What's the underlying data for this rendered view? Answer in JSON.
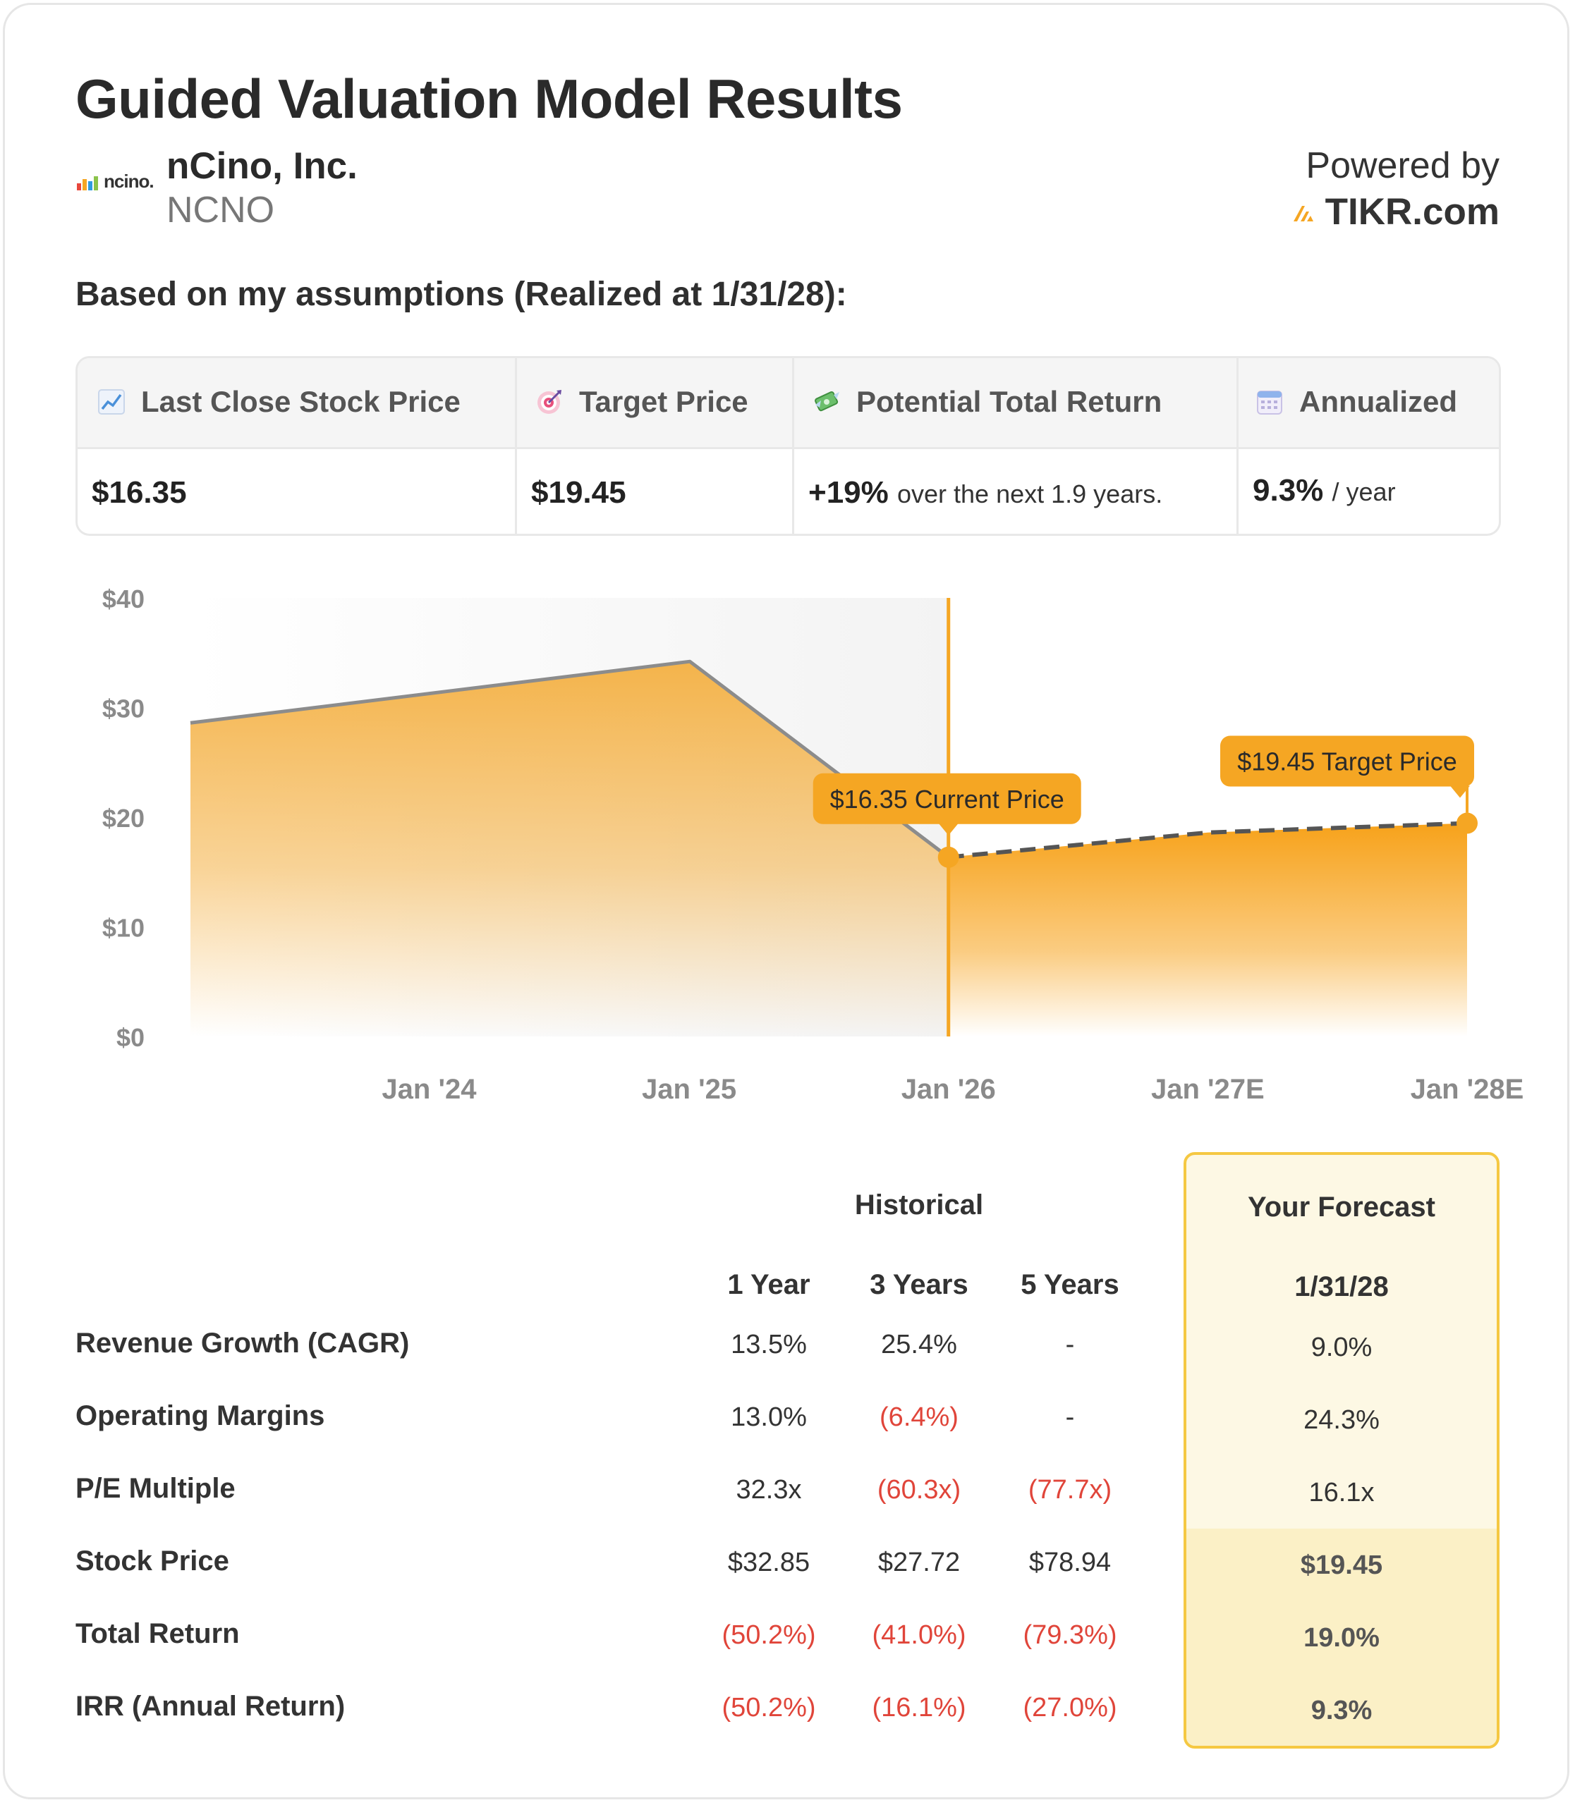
{
  "header": {
    "title": "Guided Valuation Model Results",
    "company": "nCino, Inc.",
    "ticker": "NCNO",
    "logo_text": "ncino.",
    "powered_by": "Powered by",
    "brand": "TIKR.com",
    "subtitle": "Based on my assumptions (Realized at 1/31/28):"
  },
  "summary": {
    "columns": [
      {
        "label": "Last Close Stock Price",
        "icon": "chart-increasing-icon",
        "value": "$16.35",
        "suffix": ""
      },
      {
        "label": "Target Price",
        "icon": "target-icon",
        "value": "$19.45",
        "suffix": ""
      },
      {
        "label": "Potential Total Return",
        "icon": "money-wings-icon",
        "value": "+19%",
        "suffix": "over the next 1.9 years."
      },
      {
        "label": "Annualized",
        "icon": "calendar-icon",
        "value": "9.3%",
        "suffix": "/ year"
      }
    ]
  },
  "chart_data": {
    "type": "area",
    "x_ticks": [
      "Jan '24",
      "Jan '25",
      "Jan '26",
      "Jan '27E",
      "Jan '28E"
    ],
    "y_ticks": [
      "$0",
      "$10",
      "$20",
      "$30",
      "$40"
    ],
    "ylim": [
      0,
      40
    ],
    "xlim": [
      "2023-03-01",
      "2028-01-31"
    ],
    "historical": [
      {
        "date": "2023-03-01",
        "value": 28.6
      },
      {
        "date": "2025-02-01",
        "value": 34.2
      },
      {
        "date": "2026-01-31",
        "value": 16.35
      }
    ],
    "forecast": [
      {
        "date": "2026-01-31",
        "value": 16.35
      },
      {
        "date": "2027-01-31",
        "value": 18.6
      },
      {
        "date": "2028-01-31",
        "value": 19.45
      }
    ],
    "current_label": "$16.35 Current Price",
    "target_label": "$19.45 Target Price",
    "colors": {
      "accent": "#f5a623",
      "line": "#8c8c8c",
      "fill_top": "#f4b042",
      "shade": "#f3f3f3"
    }
  },
  "table": {
    "historical_header": "Historical",
    "forecast_header": "Your Forecast",
    "period_headers": [
      "1 Year",
      "3 Years",
      "5 Years"
    ],
    "forecast_date": "1/31/28",
    "rows": [
      {
        "label": "Revenue Growth (CAGR)",
        "values": [
          "13.5%",
          "25.4%",
          "-"
        ],
        "neg": [
          false,
          false,
          false
        ],
        "forecast": "9.0%"
      },
      {
        "label": "Operating Margins",
        "values": [
          "13.0%",
          "(6.4%)",
          "-"
        ],
        "neg": [
          false,
          true,
          false
        ],
        "forecast": "24.3%"
      },
      {
        "label": "P/E Multiple",
        "values": [
          "32.3x",
          "(60.3x)",
          "(77.7x)"
        ],
        "neg": [
          false,
          true,
          true
        ],
        "forecast": "16.1x"
      },
      {
        "label": "Stock Price",
        "values": [
          "$32.85",
          "$27.72",
          "$78.94"
        ],
        "neg": [
          false,
          false,
          false
        ],
        "forecast": "$19.45"
      },
      {
        "label": "Total Return",
        "values": [
          "(50.2%)",
          "(41.0%)",
          "(79.3%)"
        ],
        "neg": [
          true,
          true,
          true
        ],
        "forecast": "19.0%"
      },
      {
        "label": "IRR (Annual Return)",
        "values": [
          "(50.2%)",
          "(16.1%)",
          "(27.0%)"
        ],
        "neg": [
          true,
          true,
          true
        ],
        "forecast": "9.3%"
      }
    ]
  }
}
